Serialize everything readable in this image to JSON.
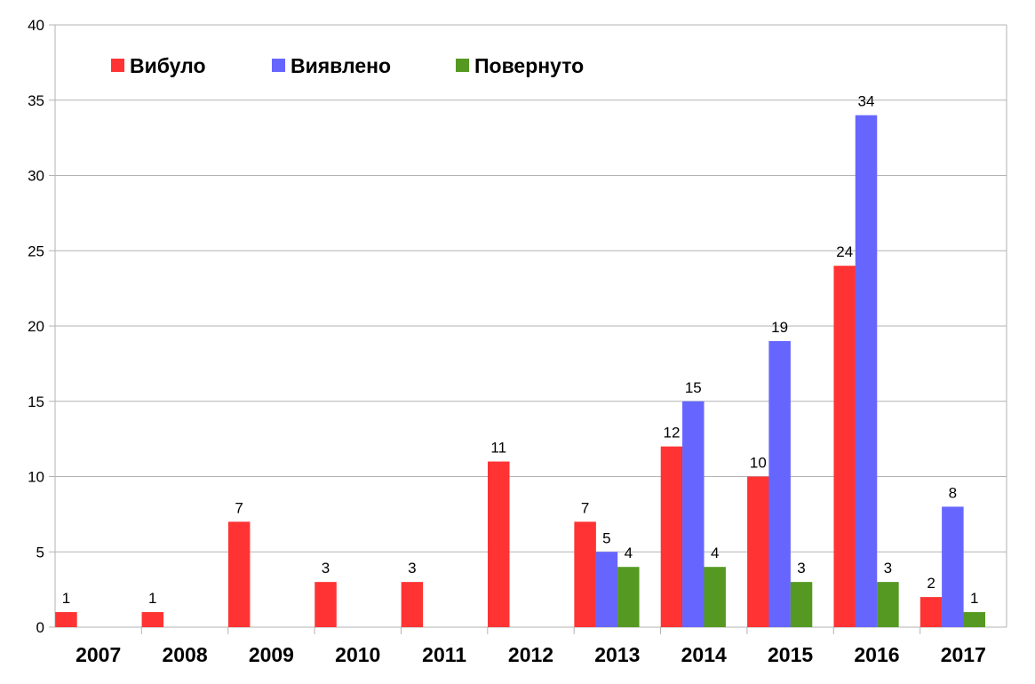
{
  "chart_data": {
    "type": "bar",
    "title": "",
    "xlabel": "",
    "ylabel": "",
    "ylim": [
      0,
      40
    ],
    "yticks": [
      0,
      5,
      10,
      15,
      20,
      25,
      30,
      35,
      40
    ],
    "grid": true,
    "legend_position": "top-left",
    "categories": [
      "2007",
      "2008",
      "2009",
      "2010",
      "2011",
      "2012",
      "2013",
      "2014",
      "2015",
      "2016",
      "2017"
    ],
    "series": [
      {
        "name": "Вибуло",
        "color": "#ff3333",
        "values": [
          1,
          1,
          7,
          3,
          3,
          11,
          7,
          12,
          10,
          24,
          2
        ]
      },
      {
        "name": "Виявлено",
        "color": "#6666ff",
        "values": [
          null,
          null,
          null,
          null,
          null,
          null,
          5,
          15,
          19,
          34,
          8
        ]
      },
      {
        "name": "Повернуто",
        "color": "#559922",
        "values": [
          null,
          null,
          null,
          null,
          null,
          null,
          4,
          4,
          3,
          3,
          1
        ]
      }
    ]
  }
}
